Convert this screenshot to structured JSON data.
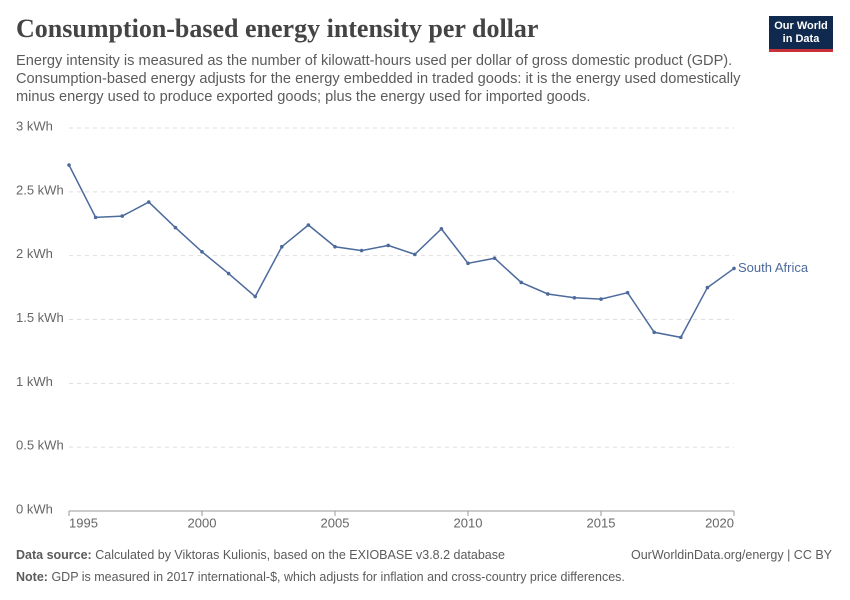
{
  "chart_data": {
    "type": "line",
    "title": "Consumption-based energy intensity per dollar",
    "subtitle": "Energy intensity is measured as the number of kilowatt-hours used per dollar of gross domestic product (GDP). Consumption-based energy adjusts for the energy embedded in traded goods: it is the energy used domestically minus energy used to produce exported goods; plus the energy used for imported goods.",
    "logo": [
      "Our World",
      "in Data"
    ],
    "x": [
      1995,
      1996,
      1997,
      1998,
      1999,
      2000,
      2001,
      2002,
      2003,
      2004,
      2005,
      2006,
      2007,
      2008,
      2009,
      2010,
      2011,
      2012,
      2013,
      2014,
      2015,
      2016,
      2017,
      2018,
      2019,
      2020
    ],
    "series": [
      {
        "name": "South Africa",
        "color": "#4c6a9c",
        "values": [
          2.71,
          2.3,
          2.31,
          2.42,
          2.22,
          2.03,
          1.86,
          1.68,
          2.07,
          2.24,
          2.07,
          2.04,
          2.08,
          2.01,
          2.21,
          1.94,
          1.98,
          1.79,
          1.7,
          1.67,
          1.66,
          1.71,
          1.4,
          1.36,
          1.75,
          1.9
        ]
      }
    ],
    "xlim": [
      1995,
      2020
    ],
    "xticks": [
      1995,
      2000,
      2005,
      2010,
      2015,
      2020
    ],
    "ylim": [
      0,
      3
    ],
    "yticks": [
      {
        "value": 0,
        "label": "0 kWh"
      },
      {
        "value": 0.5,
        "label": "0.5 kWh"
      },
      {
        "value": 1,
        "label": "1 kWh"
      },
      {
        "value": 1.5,
        "label": "1.5 kWh"
      },
      {
        "value": 2,
        "label": "2 kWh"
      },
      {
        "value": 2.5,
        "label": "2.5 kWh"
      },
      {
        "value": 3,
        "label": "3 kWh"
      }
    ],
    "grid": true,
    "data_source_label": "Data source:",
    "data_source": "Calculated by Viktoras Kulionis, based on the EXIOBASE v3.8.2 database",
    "attribution": "OurWorldinData.org/energy | CC BY",
    "note_label": "Note:",
    "note": "GDP is measured in 2017 international-$, which adjusts for inflation and cross-country price differences."
  }
}
